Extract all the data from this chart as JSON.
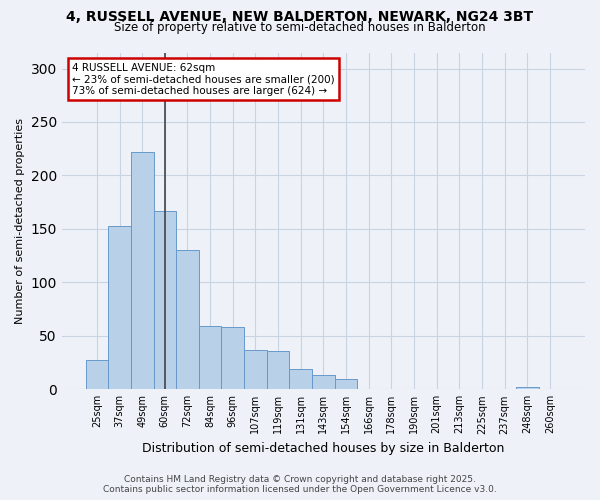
{
  "title_line1": "4, RUSSELL AVENUE, NEW BALDERTON, NEWARK, NG24 3BT",
  "title_line2": "Size of property relative to semi-detached houses in Balderton",
  "xlabel": "Distribution of semi-detached houses by size in Balderton",
  "ylabel": "Number of semi-detached properties",
  "bins": [
    "25sqm",
    "37sqm",
    "49sqm",
    "60sqm",
    "72sqm",
    "84sqm",
    "96sqm",
    "107sqm",
    "119sqm",
    "131sqm",
    "143sqm",
    "154sqm",
    "166sqm",
    "178sqm",
    "190sqm",
    "201sqm",
    "213sqm",
    "225sqm",
    "237sqm",
    "248sqm",
    "260sqm"
  ],
  "values": [
    27,
    153,
    222,
    167,
    130,
    59,
    58,
    37,
    36,
    19,
    13,
    10,
    0,
    0,
    0,
    0,
    0,
    0,
    0,
    2,
    0
  ],
  "bar_color": "#b8d0e8",
  "bar_edge_color": "#6699cc",
  "property_label": "4 RUSSELL AVENUE: 62sqm",
  "pct_smaller": 23,
  "pct_larger": 73,
  "n_smaller": 200,
  "n_larger": 624,
  "annotation_box_color": "#ffffff",
  "annotation_box_edge": "#cc0000",
  "vline_color": "#444444",
  "grid_color": "#c8d4e4",
  "background_color": "#eef2f8",
  "footer_line1": "Contains HM Land Registry data © Crown copyright and database right 2025.",
  "footer_line2": "Contains public sector information licensed under the Open Government Licence v3.0.",
  "ylim": [
    0,
    315
  ],
  "yticks": [
    0,
    50,
    100,
    150,
    200,
    250,
    300
  ]
}
